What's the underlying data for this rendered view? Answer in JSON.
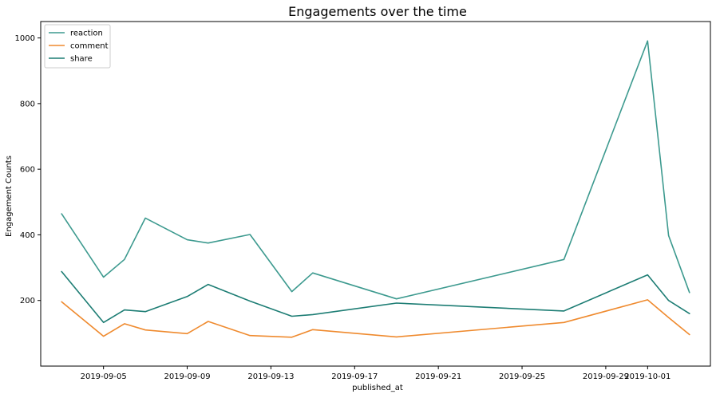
{
  "chart_data": {
    "type": "line",
    "title": "Engagements over the time",
    "xlabel": "published_at",
    "ylabel": "Engagement Counts",
    "x": [
      "2019-09-03",
      "2019-09-05",
      "2019-09-06",
      "2019-09-07",
      "2019-09-09",
      "2019-09-10",
      "2019-09-12",
      "2019-09-14",
      "2019-09-15",
      "2019-09-19",
      "2019-09-27",
      "2019-10-01",
      "2019-10-02",
      "2019-10-03"
    ],
    "xlim": [
      "2019-09-02",
      "2019-10-04"
    ],
    "ylim": [
      0,
      1050
    ],
    "series": [
      {
        "name": "reaction",
        "color": "#3d9a8f",
        "values": [
          464,
          271,
          325,
          451,
          385,
          375,
          401,
          227,
          284,
          205,
          325,
          991,
          398,
          224
        ]
      },
      {
        "name": "comment",
        "color": "#ef8a2e",
        "values": [
          196,
          91,
          129,
          110,
          99,
          136,
          93,
          88,
          111,
          89,
          133,
          202,
          148,
          96
        ]
      },
      {
        "name": "share",
        "color": "#1d7d74",
        "values": [
          288,
          133,
          171,
          166,
          212,
          249,
          198,
          152,
          157,
          192,
          168,
          278,
          200,
          160
        ]
      }
    ],
    "y_ticks": [
      200,
      400,
      600,
      800,
      1000
    ],
    "x_ticks": [
      "2019-09-05",
      "2019-09-09",
      "2019-09-13",
      "2019-09-17",
      "2019-09-21",
      "2019-09-25",
      "2019-09-29",
      "2019-10-01"
    ],
    "legend": {
      "position": "top-left"
    },
    "grid": false
  }
}
